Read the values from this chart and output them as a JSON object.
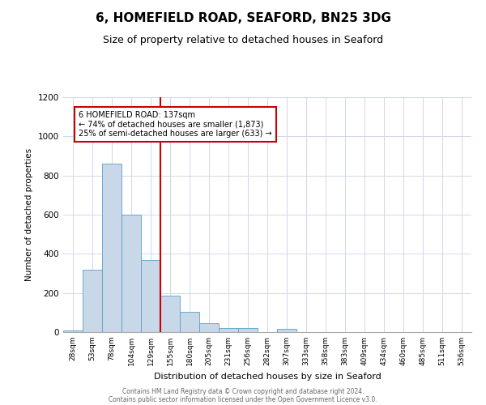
{
  "title": "6, HOMEFIELD ROAD, SEAFORD, BN25 3DG",
  "subtitle": "Size of property relative to detached houses in Seaford",
  "xlabel": "Distribution of detached houses by size in Seaford",
  "ylabel": "Number of detached properties",
  "bar_labels": [
    "28sqm",
    "53sqm",
    "78sqm",
    "104sqm",
    "129sqm",
    "155sqm",
    "180sqm",
    "205sqm",
    "231sqm",
    "256sqm",
    "282sqm",
    "307sqm",
    "333sqm",
    "358sqm",
    "383sqm",
    "409sqm",
    "434sqm",
    "460sqm",
    "485sqm",
    "511sqm",
    "536sqm"
  ],
  "bar_heights": [
    10,
    320,
    860,
    600,
    370,
    185,
    105,
    45,
    20,
    20,
    0,
    15,
    0,
    0,
    0,
    0,
    0,
    0,
    0,
    0,
    0
  ],
  "bar_color": "#c8d8e8",
  "bar_edge_color": "#5a9ec8",
  "vline_x": 4.5,
  "vline_color": "#cc0000",
  "annotation_title": "6 HOMEFIELD ROAD: 137sqm",
  "annotation_line1": "← 74% of detached houses are smaller (1,873)",
  "annotation_line2": "25% of semi-detached houses are larger (633) →",
  "annotation_box_color": "#cc0000",
  "ylim": [
    0,
    1200
  ],
  "yticks": [
    0,
    200,
    400,
    600,
    800,
    1000,
    1200
  ],
  "footer_line1": "Contains HM Land Registry data © Crown copyright and database right 2024.",
  "footer_line2": "Contains public sector information licensed under the Open Government Licence v3.0.",
  "title_fontsize": 11,
  "subtitle_fontsize": 9,
  "background_color": "#ffffff",
  "grid_color": "#d0d8e8"
}
